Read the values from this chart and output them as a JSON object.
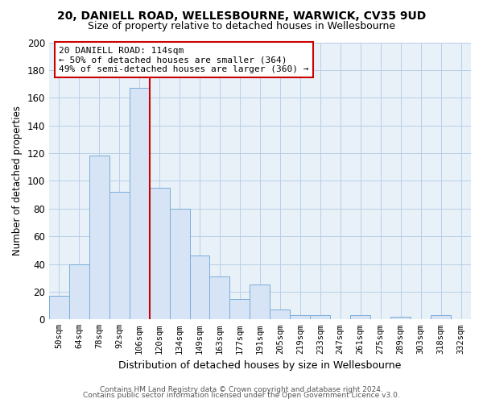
{
  "title": "20, DANIELL ROAD, WELLESBOURNE, WARWICK, CV35 9UD",
  "subtitle": "Size of property relative to detached houses in Wellesbourne",
  "xlabel": "Distribution of detached houses by size in Wellesbourne",
  "ylabel": "Number of detached properties",
  "bin_labels": [
    "50sqm",
    "64sqm",
    "78sqm",
    "92sqm",
    "106sqm",
    "120sqm",
    "134sqm",
    "149sqm",
    "163sqm",
    "177sqm",
    "191sqm",
    "205sqm",
    "219sqm",
    "233sqm",
    "247sqm",
    "261sqm",
    "275sqm",
    "289sqm",
    "303sqm",
    "318sqm",
    "332sqm"
  ],
  "bar_heights": [
    17,
    40,
    118,
    92,
    167,
    95,
    80,
    46,
    31,
    15,
    25,
    7,
    3,
    3,
    0,
    3,
    0,
    2,
    0,
    3,
    0
  ],
  "bar_color": "#d6e4f5",
  "bar_edge_color": "#7aadda",
  "vline_color": "#cc0000",
  "annotation_title": "20 DANIELL ROAD: 114sqm",
  "annotation_line1": "← 50% of detached houses are smaller (364)",
  "annotation_line2": "49% of semi-detached houses are larger (360) →",
  "annotation_box_color": "#ffffff",
  "annotation_box_edge": "#cc0000",
  "ylim": [
    0,
    200
  ],
  "yticks": [
    0,
    20,
    40,
    60,
    80,
    100,
    120,
    140,
    160,
    180,
    200
  ],
  "footer1": "Contains HM Land Registry data © Crown copyright and database right 2024.",
  "footer2": "Contains public sector information licensed under the Open Government Licence v3.0.",
  "background_color": "#ffffff",
  "plot_bg_color": "#e8f0f8",
  "grid_color": "#b8cfe8"
}
